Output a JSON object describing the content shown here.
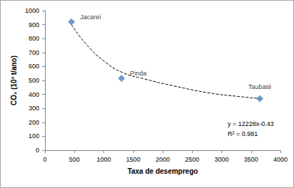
{
  "chart_data": {
    "type": "scatter",
    "x_label": "Taxa de desemprego",
    "y_label": "CO₂ (10³ t/ano)",
    "xlim": [
      0,
      4000
    ],
    "xticks": [
      0,
      500,
      1000,
      1500,
      2000,
      2500,
      3000,
      3500,
      4000
    ],
    "ylim": [
      0,
      1000
    ],
    "yticks": [
      0,
      100,
      200,
      300,
      400,
      500,
      600,
      700,
      800,
      900,
      1000
    ],
    "grid": false,
    "annotations": [
      "y = 12228x-0.43",
      "R² = 0.981"
    ],
    "series": [
      {
        "type": "scatter",
        "color": "#4f81bd",
        "marker": "diamond",
        "x": [
          450,
          1300,
          3650
        ],
        "values": [
          920,
          515,
          370
        ],
        "labels": [
          "Jacareí",
          "Pinda",
          "Taubaté"
        ]
      },
      {
        "type": "line",
        "color": "#000000",
        "line_style": "dashed",
        "x": [
          450,
          700,
          1000,
          1300,
          1700,
          2200,
          2800,
          3300,
          3650
        ],
        "values": [
          900,
          760,
          640,
          560,
          510,
          460,
          410,
          385,
          370
        ]
      }
    ]
  }
}
